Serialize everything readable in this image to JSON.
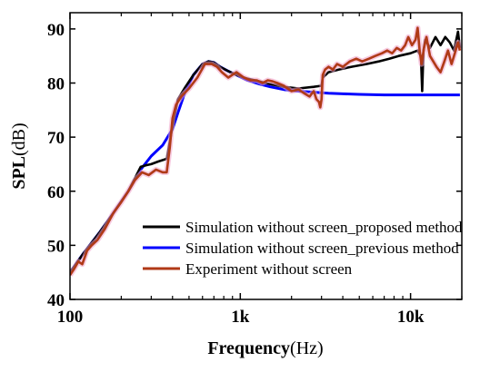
{
  "chart_data": {
    "type": "line",
    "xlabel_bold": "Frequency",
    "xlabel_unit": "(Hz)",
    "ylabel_bold": "SPL",
    "ylabel_unit": "(dB)",
    "x_scale": "log",
    "xlim": [
      100,
      20000
    ],
    "ylim": [
      40,
      93
    ],
    "x_ticks": [
      {
        "value": 100,
        "label": "100"
      },
      {
        "value": 1000,
        "label": "1k"
      },
      {
        "value": 10000,
        "label": "10k"
      }
    ],
    "y_ticks": [
      40,
      50,
      60,
      70,
      80,
      90
    ],
    "legend_position": "lower-right",
    "series": [
      {
        "name": "Simulation without screen_proposed method",
        "color": "#000000",
        "x": [
          100,
          120,
          150,
          180,
          220,
          260,
          280,
          300,
          330,
          370,
          400,
          430,
          470,
          530,
          600,
          650,
          700,
          760,
          850,
          950,
          1100,
          1300,
          1500,
          1800,
          2200,
          2700,
          3000,
          3050,
          3300,
          3800,
          4500,
          5500,
          6500,
          7500,
          8500,
          10000,
          11000,
          11500,
          11700,
          11900,
          12200,
          13000,
          14000,
          15000,
          16000,
          17000,
          18000,
          19000,
          19500
        ],
        "y": [
          45,
          48.5,
          52.5,
          56,
          60,
          64.5,
          64.8,
          65,
          65.5,
          66,
          72,
          77,
          79,
          81.5,
          83.5,
          84,
          83.8,
          83,
          82.2,
          81.5,
          80.8,
          80.3,
          79.8,
          79.3,
          79,
          79.3,
          79.5,
          81,
          82,
          82.5,
          83,
          83.5,
          84,
          84.5,
          85,
          85.5,
          86,
          85,
          78.5,
          86,
          88,
          86.5,
          88.5,
          87,
          88.5,
          87.5,
          86,
          89.5,
          86.5
        ]
      },
      {
        "name": "Simulation without screen_previous method",
        "color": "#0000ff",
        "x": [
          100,
          120,
          150,
          180,
          220,
          260,
          300,
          350,
          400,
          430,
          470,
          530,
          600,
          650,
          700,
          760,
          850,
          950,
          1100,
          1300,
          1500,
          1800,
          2200,
          2700,
          3300,
          4000,
          5000,
          7000,
          10000,
          13000,
          16000,
          19500
        ],
        "y": [
          45,
          48.5,
          52.5,
          56,
          60,
          64,
          66.5,
          68.5,
          71.5,
          74.5,
          78,
          81.5,
          83.5,
          84,
          83.8,
          83,
          82.2,
          81.5,
          80.5,
          79.8,
          79.3,
          78.8,
          78.5,
          78.3,
          78.1,
          78,
          77.9,
          77.8,
          77.8,
          77.8,
          77.8,
          77.8
        ]
      },
      {
        "name": "Experiment without screen",
        "color": "#b03a17",
        "x": [
          100,
          105,
          112,
          118,
          126,
          134,
          145,
          160,
          180,
          200,
          220,
          240,
          265,
          290,
          320,
          350,
          370,
          385,
          400,
          420,
          450,
          500,
          560,
          620,
          680,
          730,
          780,
          850,
          950,
          1050,
          1150,
          1250,
          1350,
          1450,
          1550,
          1650,
          1800,
          2000,
          2200,
          2400,
          2550,
          2700,
          2800,
          2900,
          2950,
          3000,
          3050,
          3150,
          3300,
          3500,
          3700,
          4000,
          4400,
          4800,
          5200,
          5700,
          6200,
          6800,
          7300,
          7800,
          8300,
          8800,
          9300,
          9700,
          10200,
          10700,
          11000,
          11300,
          11600,
          12000,
          12400,
          13000,
          13600,
          14200,
          15000,
          15800,
          16600,
          17400,
          18200,
          19000,
          19500
        ],
        "y": [
          44.5,
          45.5,
          47,
          46.5,
          49,
          50,
          51,
          53,
          56,
          58,
          60,
          62,
          63.5,
          63,
          64,
          63.5,
          63.5,
          68,
          73.5,
          76,
          77.5,
          79,
          81,
          83.5,
          83.5,
          83,
          82,
          81,
          82,
          81,
          80.5,
          80.5,
          80,
          80.5,
          80.3,
          80,
          79.5,
          78.5,
          78.8,
          78,
          77.5,
          78.5,
          77,
          76.5,
          75.5,
          77,
          81.5,
          82.5,
          83,
          82.5,
          83.5,
          83,
          84,
          84.5,
          84,
          84.5,
          85,
          85.5,
          86,
          85.5,
          86.5,
          86,
          87,
          88.5,
          87,
          88,
          90.2,
          86,
          83.5,
          86.5,
          88.5,
          85,
          84,
          83,
          82,
          84,
          86,
          83.5,
          85.5,
          87.5,
          86
        ]
      }
    ]
  }
}
